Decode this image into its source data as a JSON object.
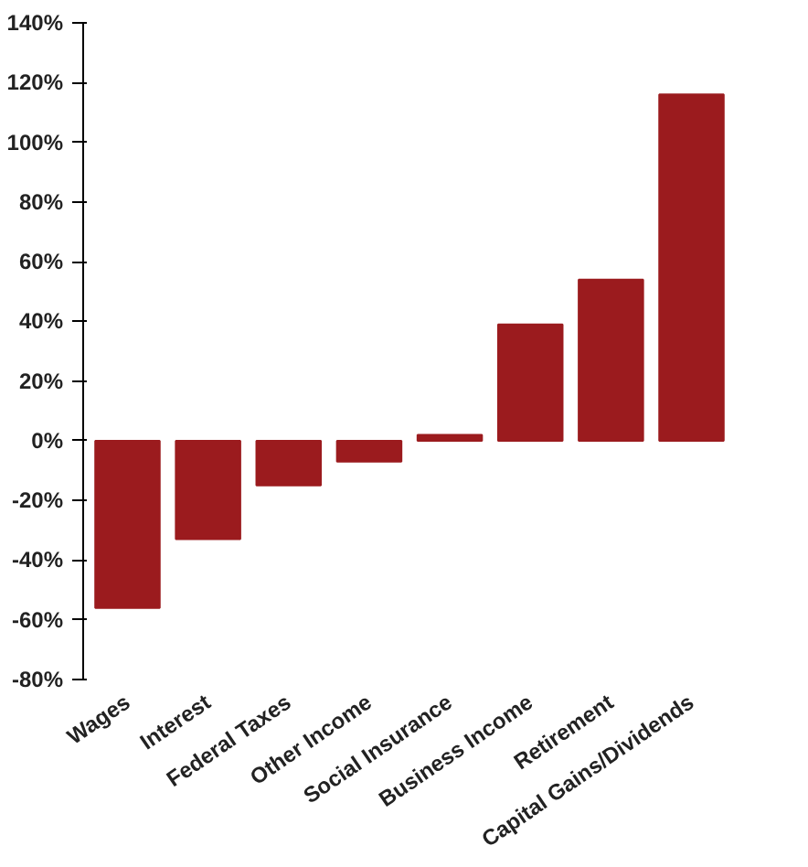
{
  "chart_data": {
    "type": "bar",
    "categories": [
      "Wages",
      "Interest",
      "Federal Taxes",
      "Other Income",
      "Social Insurance",
      "Business Income",
      "Retirement",
      "Capital Gains/Dividends"
    ],
    "values": [
      -56,
      -33,
      -15,
      -7,
      2,
      39,
      54,
      116
    ],
    "color": "#9b1b1e",
    "ylim": [
      -80,
      140
    ],
    "yticks": [
      {
        "value": -80,
        "label": "-80%"
      },
      {
        "value": -60,
        "label": "-60%"
      },
      {
        "value": -40,
        "label": "-40%"
      },
      {
        "value": -20,
        "label": "-20%"
      },
      {
        "value": 0,
        "label": "0%"
      },
      {
        "value": 20,
        "label": "20%"
      },
      {
        "value": 40,
        "label": "40%"
      },
      {
        "value": 60,
        "label": "60%"
      },
      {
        "value": 80,
        "label": "80%"
      },
      {
        "value": 100,
        "label": "100%"
      },
      {
        "value": 120,
        "label": "120%"
      },
      {
        "value": 140,
        "label": "140%"
      }
    ],
    "grid": false
  }
}
